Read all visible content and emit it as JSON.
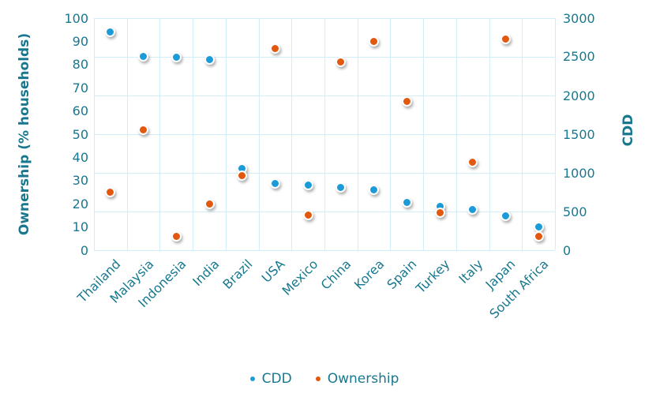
{
  "chart_data": {
    "type": "scatter",
    "categories": [
      "Thailand",
      "Malaysia",
      "Indonesia",
      "India",
      "Brazil",
      "USA",
      "Mexico",
      "China",
      "Korea",
      "Spain",
      "Turkey",
      "Italy",
      "Japan",
      "South Africa"
    ],
    "series": [
      {
        "name": "CDD",
        "axis": "right",
        "color": "#1b9cd8",
        "values": [
          2820,
          2510,
          2490,
          2460,
          1060,
          865,
          845,
          810,
          780,
          615,
          565,
          525,
          440,
          300
        ]
      },
      {
        "name": "Ownership",
        "axis": "left",
        "color": "#e2580e",
        "values": [
          25,
          52,
          6,
          20,
          32,
          87,
          15,
          81,
          90,
          64,
          16,
          38,
          91,
          6
        ]
      }
    ],
    "left_axis": {
      "title": "Ownership (% households)",
      "min": 0,
      "max": 100,
      "ticks": [
        0,
        10,
        20,
        30,
        40,
        50,
        60,
        70,
        80,
        90,
        100
      ]
    },
    "right_axis": {
      "title": "CDD",
      "min": 0,
      "max": 3000,
      "ticks": [
        0,
        500,
        1000,
        1500,
        2000,
        2500,
        3000
      ]
    },
    "legend": [
      {
        "label": "CDD",
        "color": "#1b9cd8"
      },
      {
        "label": "Ownership",
        "color": "#e2580e"
      }
    ],
    "layout": {
      "grid": "on",
      "legend_position": "bottom-center"
    },
    "colors": {
      "text": "#17788f",
      "grid": "#d2eef8",
      "cdd": "#1b9cd8",
      "ownership": "#e2580e"
    }
  }
}
